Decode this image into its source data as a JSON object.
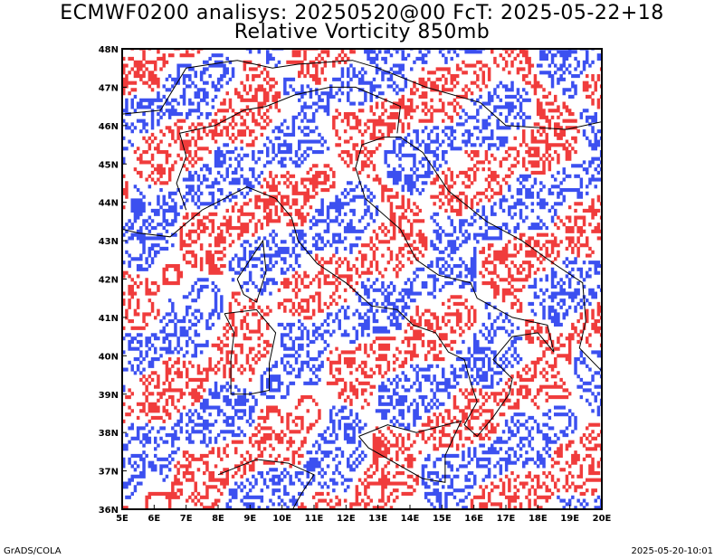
{
  "title_line1": "ECMWF0200 analisys: 20250520@00 FcT: 2025-05-22+18",
  "title_line2": "Relative Vorticity 850mb",
  "footer_left": "GrADS/COLA",
  "footer_right": "2025-05-20-10:01",
  "map": {
    "lon_range": [
      5,
      20
    ],
    "lat_range": [
      36,
      48
    ],
    "x_ticks": [
      "5E",
      "6E",
      "7E",
      "8E",
      "9E",
      "10E",
      "11E",
      "12E",
      "13E",
      "14E",
      "15E",
      "16E",
      "17E",
      "18E",
      "19E",
      "20E"
    ],
    "y_ticks": [
      "36N",
      "37N",
      "38N",
      "39N",
      "40N",
      "41N",
      "42N",
      "43N",
      "44N",
      "45N",
      "46N",
      "47N",
      "48N"
    ],
    "positive_color": "#f03c3c",
    "negative_color": "#3c50f0",
    "coast_color": "#000000"
  }
}
